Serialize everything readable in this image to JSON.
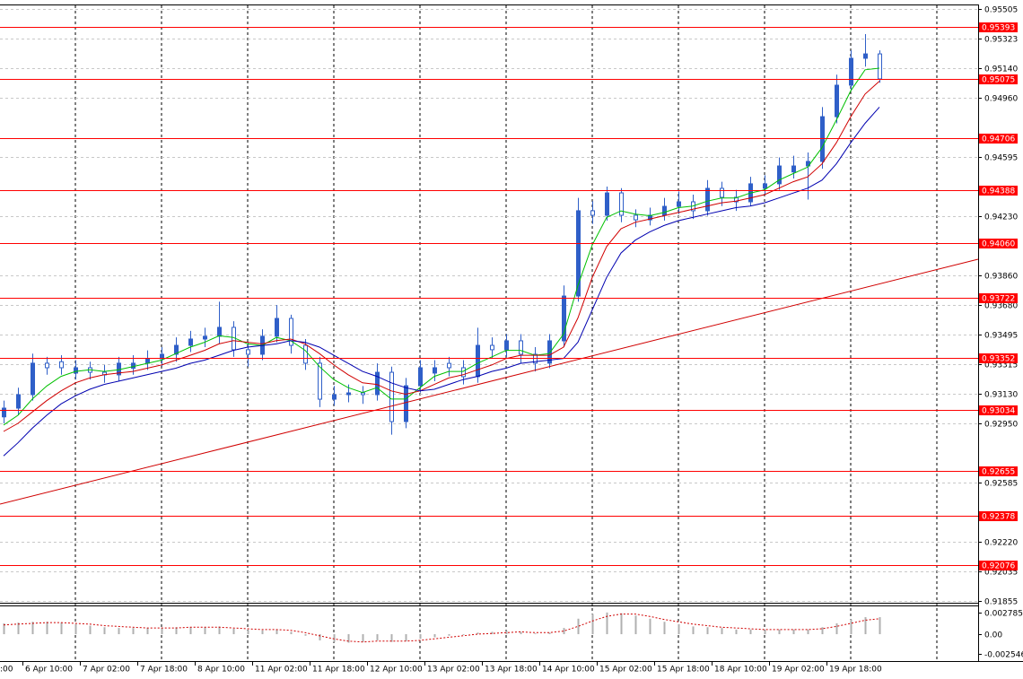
{
  "chart_data": [
    {
      "type": "candlestick",
      "color": "#2f5fc8",
      "ylim": [
        0.91855,
        0.95505
      ],
      "yticks": [
        0.95505,
        0.95323,
        {
          "value": 0.9514,
          "label": "0.95140"
        },
        {
          "value": 0.9496,
          "label": "0.94960"
        },
        0.94595,
        {
          "value": 0.9423,
          "label": "0.94230"
        },
        {
          "value": 0.9386,
          "label": "0.93860"
        },
        {
          "value": 0.9368,
          "label": "0.93680"
        },
        0.93495,
        0.93315,
        {
          "value": 0.9313,
          "label": "0.93130"
        },
        {
          "value": 0.9295,
          "label": "0.92950"
        },
        0.92585,
        {
          "value": 0.9222,
          "label": "0.92220"
        },
        0.92035,
        0.91855
      ],
      "grid": true,
      "x_labels": [
        ":00",
        "6 Apr 10:00",
        "7 Apr 02:00",
        "7 Apr 18:00",
        "8 Apr 10:00",
        "11 Apr 02:00",
        "11 Apr 18:00",
        "12 Apr 10:00",
        "13 Apr 02:00",
        "13 Apr 18:00",
        "14 Apr 10:00",
        "15 Apr 02:00",
        "15 Apr 18:00",
        "18 Apr 10:00",
        "19 Apr 02:00",
        "19 Apr 18:00"
      ],
      "open": [
        0.9299,
        0.93044,
        0.93127,
        0.93321,
        0.9333,
        0.9326,
        0.93293,
        0.93265,
        0.93249,
        0.9329,
        0.93321,
        0.93348,
        0.93376,
        0.93431,
        0.9347,
        0.93487,
        0.93542,
        0.93404,
        0.93376,
        0.93487,
        0.93597,
        0.93431,
        0.93321,
        0.93099,
        0.93127,
        0.93138,
        0.93127,
        0.93265,
        0.92961,
        0.93182,
        0.9326,
        0.9332,
        0.93293,
        0.93238,
        0.93431,
        0.93404,
        0.93459,
        0.93376,
        0.93321,
        0.93459,
        0.93735,
        0.94261,
        0.94233,
        0.94371,
        0.94233,
        0.94205,
        0.94233,
        0.94288,
        0.94316,
        0.94261,
        0.94399,
        0.94344,
        0.94316,
        0.944,
        0.94427,
        0.945,
        0.94537,
        0.94565,
        0.94841,
        0.95035,
        0.95201,
        0.95228
      ],
      "high": [
        0.9309,
        0.9317,
        0.9338,
        0.9336,
        0.9337,
        0.9334,
        0.9333,
        0.9331,
        0.9336,
        0.9337,
        0.934,
        0.9342,
        0.9348,
        0.9352,
        0.9354,
        0.937,
        0.9358,
        0.9345,
        0.9353,
        0.9368,
        0.9362,
        0.9347,
        0.9336,
        0.9318,
        0.9319,
        0.9318,
        0.9332,
        0.933,
        0.9323,
        0.9334,
        0.9334,
        0.9336,
        0.9334,
        0.9354,
        0.9348,
        0.935,
        0.935,
        0.9342,
        0.935,
        0.938,
        0.9434,
        0.9432,
        0.9441,
        0.944,
        0.9427,
        0.9428,
        0.9434,
        0.9438,
        0.9436,
        0.9445,
        0.9444,
        0.9439,
        0.9447,
        0.9448,
        0.9459,
        0.946,
        0.9462,
        0.949,
        0.951,
        0.9525,
        0.9535,
        0.9525
      ],
      "low": [
        0.9295,
        0.93,
        0.9309,
        0.9325,
        0.9325,
        0.9322,
        0.9322,
        0.932,
        0.9321,
        0.9325,
        0.9328,
        0.933,
        0.9333,
        0.9339,
        0.9342,
        0.9344,
        0.9336,
        0.933,
        0.9334,
        0.9345,
        0.9338,
        0.9328,
        0.9305,
        0.9306,
        0.9308,
        0.9307,
        0.9309,
        0.9288,
        0.9292,
        0.9314,
        0.9321,
        0.9324,
        0.9319,
        0.932,
        0.9335,
        0.9336,
        0.9332,
        0.9327,
        0.9329,
        0.9342,
        0.937,
        0.9418,
        0.942,
        0.9419,
        0.9416,
        0.9417,
        0.942,
        0.9424,
        0.9421,
        0.9423,
        0.9429,
        0.9426,
        0.9429,
        0.9436,
        0.9439,
        0.9446,
        0.9433,
        0.9452,
        0.948,
        0.95,
        0.9515,
        0.9505
      ],
      "close": [
        0.93044,
        0.93127,
        0.93321,
        0.93293,
        0.93293,
        0.93293,
        0.93265,
        0.93249,
        0.93321,
        0.93321,
        0.93348,
        0.93376,
        0.93431,
        0.9347,
        0.93487,
        0.93542,
        0.93404,
        0.93376,
        0.93487,
        0.93597,
        0.93431,
        0.93321,
        0.93099,
        0.93127,
        0.93138,
        0.93127,
        0.93265,
        0.92961,
        0.93182,
        0.93293,
        0.93293,
        0.93293,
        0.93238,
        0.93431,
        0.93404,
        0.93459,
        0.93376,
        0.93321,
        0.93459,
        0.93735,
        0.94261,
        0.94233,
        0.94371,
        0.94233,
        0.94205,
        0.94233,
        0.94288,
        0.94316,
        0.94261,
        0.94399,
        0.94344,
        0.94316,
        0.94427,
        0.94427,
        0.94537,
        0.94537,
        0.94565,
        0.94841,
        0.95035,
        0.95201,
        0.95228,
        0.95074
      ],
      "lines": [
        {
          "color": "#00c000",
          "values": [
            0.9294,
            0.93,
            0.931,
            0.9318,
            0.9324,
            0.9327,
            0.9328,
            0.9327,
            0.9328,
            0.933,
            0.9332,
            0.9334,
            0.9338,
            0.9342,
            0.9345,
            0.9349,
            0.9348,
            0.9344,
            0.9343,
            0.9348,
            0.9346,
            0.934,
            0.933,
            0.9322,
            0.9317,
            0.9314,
            0.9317,
            0.931,
            0.931,
            0.9317,
            0.9324,
            0.9327,
            0.9327,
            0.9332,
            0.9336,
            0.934,
            0.934,
            0.9337,
            0.9338,
            0.935,
            0.938,
            0.9405,
            0.9422,
            0.9426,
            0.9424,
            0.9423,
            0.9425,
            0.9428,
            0.9429,
            0.9432,
            0.9434,
            0.9434,
            0.9437,
            0.9439,
            0.9445,
            0.9449,
            0.9453,
            0.9465,
            0.9482,
            0.95,
            0.9513,
            0.9514
          ]
        },
        {
          "color": "#d00000",
          "values": [
            0.929,
            0.9295,
            0.9302,
            0.9309,
            0.9315,
            0.932,
            0.9323,
            0.9325,
            0.9326,
            0.9327,
            0.9329,
            0.9331,
            0.9334,
            0.9337,
            0.934,
            0.9344,
            0.9346,
            0.9345,
            0.9344,
            0.9346,
            0.9347,
            0.9344,
            0.9338,
            0.9331,
            0.9325,
            0.932,
            0.9319,
            0.9315,
            0.9313,
            0.9315,
            0.9319,
            0.9323,
            0.9325,
            0.9328,
            0.9331,
            0.9335,
            0.9337,
            0.9337,
            0.9337,
            0.9342,
            0.936,
            0.9385,
            0.9404,
            0.9415,
            0.9419,
            0.9421,
            0.9423,
            0.9425,
            0.9427,
            0.9429,
            0.9431,
            0.9432,
            0.9434,
            0.9436,
            0.944,
            0.9444,
            0.9447,
            0.9455,
            0.9468,
            0.9484,
            0.9498,
            0.9506
          ]
        },
        {
          "color": "#0000b0",
          "values": [
            0.9275,
            0.9283,
            0.9292,
            0.93,
            0.9307,
            0.9312,
            0.9316,
            0.9319,
            0.9321,
            0.9323,
            0.9325,
            0.9327,
            0.9329,
            0.9332,
            0.9334,
            0.9337,
            0.934,
            0.9342,
            0.9343,
            0.9344,
            0.9346,
            0.9345,
            0.9342,
            0.9337,
            0.9332,
            0.9327,
            0.9324,
            0.932,
            0.9317,
            0.9315,
            0.9316,
            0.9319,
            0.9322,
            0.9324,
            0.9327,
            0.9329,
            0.9332,
            0.9333,
            0.9334,
            0.9335,
            0.9345,
            0.9365,
            0.9385,
            0.94,
            0.9408,
            0.9413,
            0.9417,
            0.942,
            0.9422,
            0.9424,
            0.9426,
            0.9428,
            0.9429,
            0.9431,
            0.9434,
            0.9437,
            0.944,
            0.9445,
            0.9455,
            0.9468,
            0.948,
            0.949
          ]
        }
      ],
      "trendline": {
        "color": "#d00000",
        "x": [
          -0.25,
          67.875
        ],
        "values": [
          0.92452,
          0.93962
        ]
      },
      "levels": {
        "color": "#ff0000",
        "values": [
          0.95393,
          0.95075,
          0.94706,
          0.94388,
          {
            "value": 0.9406,
            "label": "0.94060"
          },
          0.93722,
          0.93352,
          0.93034,
          0.92655,
          0.92378,
          0.92076
        ]
      }
    },
    {
      "type": "bar",
      "color": "#b0b0b0",
      "ylim": [
        -0.002546,
        0.002785
      ],
      "yticks": [
        0.002785,
        {
          "value": 0,
          "label": "0.00"
        },
        -0.002546
      ],
      "values": [
        0.0014,
        0.0015,
        0.0016,
        0.0016,
        0.0015,
        0.0013,
        0.0011,
        0.0009,
        0.0008,
        0.0008,
        0.0008,
        0.0008,
        0.0009,
        0.0009,
        0.0009,
        0.001,
        0.0007,
        0.0005,
        0.0005,
        0.0006,
        0.0003,
        -0.0002,
        -0.0008,
        -0.001,
        -0.0011,
        -0.001,
        -0.0008,
        -0.001,
        -0.0009,
        -0.0006,
        -0.0004,
        -0.0002,
        -0.0001,
        0.0002,
        0.0003,
        0.0004,
        0.0003,
        0.0001,
        0.0002,
        0.0008,
        0.002,
        0.0026,
        0.0028,
        0.0027,
        0.0024,
        0.002,
        0.0016,
        0.0013,
        0.001,
        0.0009,
        0.0008,
        0.0006,
        0.0006,
        0.0005,
        0.0006,
        0.0006,
        0.0006,
        0.0009,
        0.0014,
        0.0019,
        0.0022,
        0.0022
      ],
      "signal": {
        "color": "#d00000",
        "values": [
          0.0012,
          0.0013,
          0.0014,
          0.0015,
          0.0015,
          0.0014,
          0.0013,
          0.0011,
          0.001,
          0.0009,
          0.0008,
          0.0008,
          0.0008,
          0.0009,
          0.0009,
          0.0009,
          0.0008,
          0.0007,
          0.0006,
          0.0006,
          0.0005,
          0.0002,
          -0.0002,
          -0.0006,
          -0.0009,
          -0.001,
          -0.0009,
          -0.0009,
          -0.0009,
          -0.0008,
          -0.0006,
          -0.0004,
          -0.0002,
          0,
          0.0001,
          0.0002,
          0.0003,
          0.0002,
          0.0002,
          0.0004,
          0.001,
          0.0017,
          0.0023,
          0.0026,
          0.0026,
          0.0023,
          0.0019,
          0.0016,
          0.0013,
          0.0011,
          0.0009,
          0.0008,
          0.0007,
          0.0006,
          0.0006,
          0.0006,
          0.0006,
          0.0007,
          0.001,
          0.0014,
          0.0018,
          0.002
        ]
      }
    }
  ]
}
